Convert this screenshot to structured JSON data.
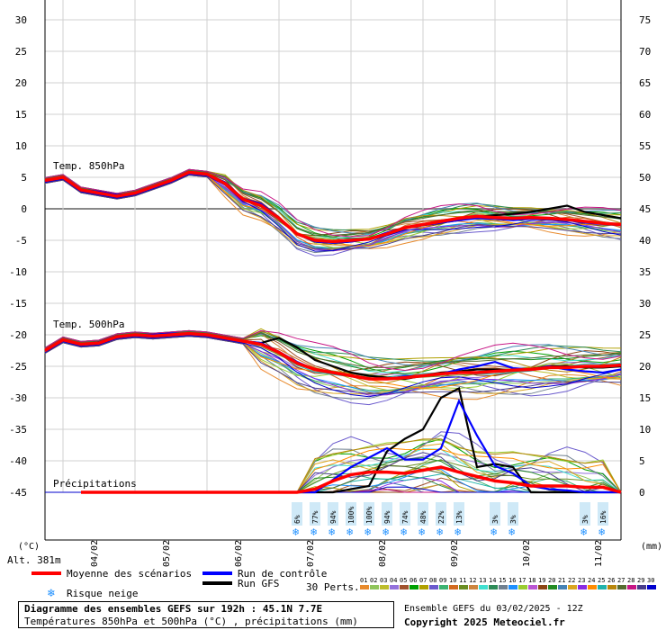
{
  "chart_data": {
    "type": "line",
    "title": "Diagramme des ensembles GEFS sur 192h : 45.1N 7.7E",
    "subtitle": "Températures 850hPa et 500hPa (°C) , précipitations (mm)",
    "left_axis": {
      "unit_label": "(°C)",
      "min": -45,
      "max": 30,
      "ticks": [
        30,
        25,
        20,
        15,
        10,
        5,
        0,
        -5,
        -10,
        -15,
        -20,
        -25,
        -30,
        -35,
        -40,
        -45
      ]
    },
    "right_axis": {
      "unit_label": "(mm)",
      "min": 0,
      "max": 75,
      "ticks": [
        75,
        70,
        65,
        60,
        55,
        50,
        45,
        40,
        35,
        30,
        25,
        20,
        15,
        10,
        5,
        0
      ]
    },
    "altitude_label": "Alt. 381m",
    "x_labels": [
      "04/02",
      "05/02",
      "06/02",
      "07/02",
      "08/02",
      "09/02",
      "10/02",
      "11/02"
    ],
    "x_hours": [
      0,
      6,
      12,
      18,
      24,
      30,
      36,
      42,
      48,
      54,
      60,
      66,
      72,
      78,
      84,
      90,
      96,
      102,
      108,
      114,
      120,
      126,
      132,
      138,
      144,
      150,
      156,
      162,
      168,
      174,
      180,
      186,
      192
    ],
    "section_labels": {
      "t850": "Temp. 850hPa",
      "t500": "Temp. 500hPa",
      "precip": "Précipitations"
    },
    "series": [
      {
        "name": "Moyenne des scénarios",
        "color": "#ff0000",
        "t850": [
          4.5,
          5,
          3,
          2.5,
          2,
          2.5,
          3.5,
          4.5,
          5.8,
          5.5,
          4,
          1.5,
          0.5,
          -1.5,
          -4,
          -5,
          -5.2,
          -5,
          -4.8,
          -4,
          -3,
          -2.5,
          -2,
          -1.5,
          -1.2,
          -1.4,
          -1.5,
          -1.4,
          -1.5,
          -1.7,
          -2,
          -2.3,
          -2.5
        ],
        "t500": [
          -22.5,
          -20.8,
          -21.5,
          -21.3,
          -20.3,
          -20,
          -20.2,
          -20,
          -19.8,
          -20,
          -20.5,
          -21,
          -21.5,
          -22.8,
          -24.5,
          -25.5,
          -26,
          -26.5,
          -27,
          -27,
          -26.8,
          -26.5,
          -26.2,
          -26,
          -26,
          -25.8,
          -25.6,
          -25.5,
          -25.2,
          -25.2,
          -25,
          -25,
          -24.8
        ],
        "precip": [
          0,
          0,
          0,
          0,
          0,
          0,
          0,
          0,
          0,
          0,
          0,
          0,
          0,
          0,
          0,
          0.5,
          1.8,
          2.8,
          3.2,
          3.2,
          3,
          3.5,
          4,
          3.2,
          2.5,
          1.8,
          1.5,
          1,
          1,
          1,
          0.8,
          0.8,
          0
        ]
      },
      {
        "name": "Run de contrôle",
        "color": "#0000ff",
        "t850": [
          4.3,
          5,
          3,
          2.7,
          2.2,
          2.4,
          3.3,
          4.5,
          5.6,
          5.5,
          4.2,
          1.6,
          0.8,
          -1.4,
          -4,
          -5.2,
          -5.4,
          -5.2,
          -4.8,
          -3.8,
          -3,
          -2.6,
          -2.2,
          -1.8,
          -1.5,
          -1.6,
          -1.8,
          -1.6,
          -1.5,
          -1.8,
          -2.2,
          -2.4,
          -2.6
        ],
        "t500": [
          -22.5,
          -20.8,
          -21.5,
          -21.2,
          -20.2,
          -20,
          -20,
          -19.8,
          -19.8,
          -20,
          -20.4,
          -21,
          -21.3,
          -22.7,
          -24.3,
          -25.5,
          -26,
          -26.5,
          -27,
          -27,
          -26.6,
          -26.5,
          -26.2,
          -25.5,
          -25,
          -24.3,
          -25.3,
          -25.5,
          -25,
          -25.5,
          -25.8,
          -26,
          -25.5
        ],
        "precip": [
          0,
          0,
          0,
          0,
          0,
          0,
          0,
          0,
          0,
          0,
          0,
          0,
          0,
          0,
          0,
          0,
          2,
          4,
          5.5,
          7,
          5.2,
          5.2,
          7,
          14.5,
          9,
          4.2,
          3,
          1,
          0.5,
          0.3,
          0,
          0,
          0
        ]
      },
      {
        "name": "Run GFS",
        "color": "#000000",
        "t850": [
          4.3,
          5,
          3,
          2.7,
          2.2,
          2.4,
          3.3,
          4.5,
          5.6,
          5.5,
          4.2,
          1.6,
          0.8,
          -1.4,
          -4,
          -5.2,
          -5.4,
          -5.2,
          -4.8,
          -3.8,
          -3,
          -2.6,
          -2.2,
          -1.8,
          -1.3,
          -1,
          -0.8,
          -0.5,
          0,
          0.5,
          -0.5,
          -1,
          -1.5
        ],
        "t500": [
          -22.5,
          -20.8,
          -21.5,
          -21.2,
          -20.2,
          -20,
          -20,
          -19.8,
          -19.8,
          -20,
          -20.4,
          -21,
          -21.3,
          -20.5,
          -22,
          -24,
          -25,
          -26,
          -26.5,
          -26.8,
          -27,
          -26.5,
          -26,
          -25.8,
          -25.5,
          -25.5,
          -25.6,
          -25.4,
          -25,
          -25,
          -25.2,
          -25.2,
          -25
        ],
        "precip": [
          0,
          0,
          0,
          0,
          0,
          0,
          0,
          0,
          0,
          0,
          0,
          0,
          0,
          0,
          0,
          0,
          0,
          0.5,
          1,
          6.5,
          8.5,
          10,
          15,
          16.5,
          4,
          4.5,
          4,
          0,
          0,
          0,
          0,
          0,
          0
        ]
      }
    ],
    "snow_risk": [
      {
        "hour": 84,
        "pct": "6%"
      },
      {
        "hour": 90,
        "pct": "77%"
      },
      {
        "hour": 96,
        "pct": "94%"
      },
      {
        "hour": 102,
        "pct": "100%"
      },
      {
        "hour": 108,
        "pct": "100%"
      },
      {
        "hour": 114,
        "pct": "94%"
      },
      {
        "hour": 120,
        "pct": "74%"
      },
      {
        "hour": 126,
        "pct": "48%"
      },
      {
        "hour": 132,
        "pct": "22%"
      },
      {
        "hour": 138,
        "pct": "13%"
      },
      {
        "hour": 150,
        "pct": "3%"
      },
      {
        "hour": 156,
        "pct": "3%"
      },
      {
        "hour": 180,
        "pct": "3%"
      },
      {
        "hour": 186,
        "pct": "16%"
      }
    ],
    "perturbations": {
      "label": "30 Perts.",
      "ids": [
        "01",
        "02",
        "03",
        "04",
        "05",
        "06",
        "07",
        "08",
        "09",
        "10",
        "11",
        "12",
        "13",
        "14",
        "15",
        "16",
        "17",
        "18",
        "19",
        "20",
        "21",
        "22",
        "23",
        "24",
        "25",
        "26",
        "27",
        "28",
        "29",
        "30"
      ],
      "colors": [
        "#e88a2c",
        "#8fc45a",
        "#bdbd2c",
        "#9370db",
        "#a0522d",
        "#00a000",
        "#b0a000",
        "#6a5acd",
        "#3cb371",
        "#d2691e",
        "#6b8e23",
        "#cd853f",
        "#40e0d0",
        "#2e8b57",
        "#708090",
        "#1e90ff",
        "#9acd32",
        "#ba55d3",
        "#8b4513",
        "#228b22",
        "#4682b4",
        "#daa520",
        "#8a2be2",
        "#ff8c00",
        "#20b2aa",
        "#b8860b",
        "#556b2f",
        "#c71585",
        "#483d8b",
        "#0000cd"
      ]
    },
    "legend": {
      "mean": "Moyenne des scénarios",
      "control": "Run de contrôle",
      "gfs": "Run GFS",
      "snow": "Risque neige"
    },
    "grid": true
  },
  "footer": {
    "title": "Diagramme des ensembles GEFS sur 192h : 45.1N 7.7E",
    "subtitle": "Températures 850hPa et 500hPa (°C) , précipitations (mm)",
    "run": "Ensemble GEFS du 03/02/2025 - 12Z",
    "copyright": "Copyright 2025 Meteociel.fr"
  }
}
